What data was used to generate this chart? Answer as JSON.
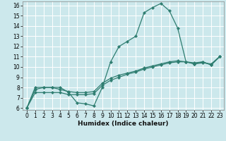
{
  "title": "",
  "xlabel": "Humidex (Indice chaleur)",
  "bg_color": "#cce8ec",
  "grid_color": "#ffffff",
  "line_color": "#2e7d70",
  "xlim": [
    -0.5,
    23.5
  ],
  "ylim": [
    5.8,
    16.4
  ],
  "xticks": [
    0,
    1,
    2,
    3,
    4,
    5,
    6,
    7,
    8,
    9,
    10,
    11,
    12,
    13,
    14,
    15,
    16,
    17,
    18,
    19,
    20,
    21,
    22,
    23
  ],
  "yticks": [
    6,
    7,
    8,
    9,
    10,
    11,
    12,
    13,
    14,
    15,
    16
  ],
  "line1_x": [
    0,
    1,
    2,
    3,
    4,
    5,
    6,
    7,
    8,
    9,
    10,
    11,
    12,
    13,
    14,
    15,
    16,
    17,
    18,
    19,
    20,
    21,
    22,
    23
  ],
  "line1_y": [
    6.0,
    8.0,
    8.0,
    8.0,
    8.0,
    7.5,
    6.5,
    6.4,
    6.2,
    8.0,
    10.5,
    12.0,
    12.5,
    13.0,
    15.3,
    15.8,
    16.2,
    15.5,
    13.8,
    10.5,
    10.3,
    10.5,
    10.2,
    11.0
  ],
  "line2_x": [
    0,
    1,
    2,
    3,
    4,
    5,
    6,
    7,
    8,
    9,
    10,
    11,
    12,
    13,
    14,
    15,
    16,
    17,
    18,
    19,
    20,
    21,
    22,
    23
  ],
  "line2_y": [
    6.0,
    7.5,
    7.5,
    7.5,
    7.5,
    7.3,
    7.3,
    7.3,
    7.4,
    8.2,
    8.7,
    9.0,
    9.3,
    9.5,
    9.8,
    10.0,
    10.2,
    10.4,
    10.5,
    10.5,
    10.4,
    10.5,
    10.2,
    11.0
  ],
  "line3_x": [
    0,
    1,
    2,
    3,
    4,
    5,
    6,
    7,
    8,
    9,
    10,
    11,
    12,
    13,
    14,
    15,
    16,
    17,
    18,
    19,
    20,
    21,
    22,
    23
  ],
  "line3_y": [
    6.0,
    7.8,
    8.0,
    8.0,
    7.8,
    7.6,
    7.5,
    7.5,
    7.6,
    8.4,
    8.9,
    9.2,
    9.4,
    9.6,
    9.9,
    10.1,
    10.3,
    10.5,
    10.6,
    10.5,
    10.3,
    10.4,
    10.3,
    11.0
  ],
  "xlabel_fontsize": 6.5,
  "tick_fontsize": 5.5,
  "linewidth": 0.9,
  "markersize": 2.2
}
